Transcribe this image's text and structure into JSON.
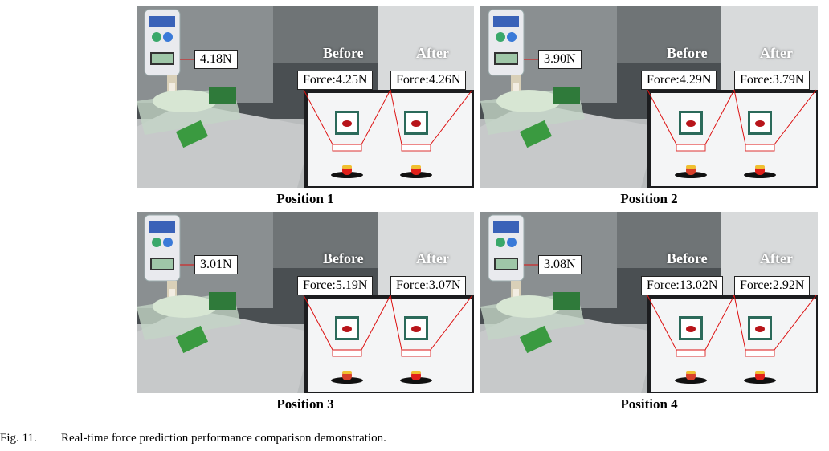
{
  "figure": {
    "panels": [
      {
        "meter": "4.18N",
        "before_label": "Before",
        "after_label": "After",
        "before_force": "Force:4.25N",
        "after_force": "Force:4.26N",
        "caption": "Position 1",
        "before_peak_color": "#e0201a",
        "after_peak_color": "#e0201a"
      },
      {
        "meter": "3.90N",
        "before_label": "Before",
        "after_label": "After",
        "before_force": "Force:4.29N",
        "after_force": "Force:3.79N",
        "caption": "Position 2",
        "before_peak_color": "#d8402a",
        "after_peak_color": "#e0201a"
      },
      {
        "meter": "3.01N",
        "before_label": "Before",
        "after_label": "After",
        "before_force": "Force:5.19N",
        "after_force": "Force:3.07N",
        "caption": "Position 3",
        "before_peak_color": "#d8402a",
        "after_peak_color": "#e0201a"
      },
      {
        "meter": "3.08N",
        "before_label": "Before",
        "after_label": "After",
        "before_force": "Force:13.02N",
        "after_force": "Force:2.92N",
        "caption": "Position 4",
        "before_peak_color": "#d8402a",
        "after_peak_color": "#e0201a"
      }
    ],
    "caption_number": "Fig. 11.",
    "caption_text": "Real-time force prediction performance comparison demonstration."
  }
}
